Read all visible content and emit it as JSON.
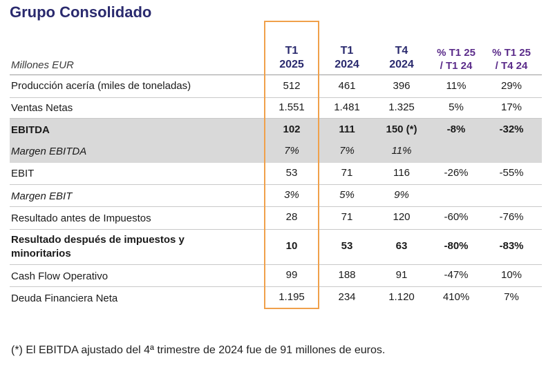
{
  "title": "Grupo Consolidado",
  "units_label": "Millones EUR",
  "columns": [
    {
      "l1": "T1",
      "l2": "2025"
    },
    {
      "l1": "T1",
      "l2": "2024"
    },
    {
      "l1": "T4",
      "l2": "2024"
    },
    {
      "l1": "% T1 25",
      "l2": "/ T1 24"
    },
    {
      "l1": "% T1 25",
      "l2": "/ T4 24"
    }
  ],
  "rows": [
    {
      "label": "Producción acería (miles de toneladas)",
      "values": [
        "512",
        "461",
        "396",
        "11%",
        "29%"
      ]
    },
    {
      "label": "Ventas Netas",
      "values": [
        "1.551",
        "1.481",
        "1.325",
        "5%",
        "17%"
      ]
    },
    {
      "label": "EBITDA",
      "values": [
        "102",
        "111",
        "150 (*)",
        "-8%",
        "-32%"
      ]
    },
    {
      "label": "Margen EBITDA",
      "values": [
        "7%",
        "7%",
        "11%",
        "",
        ""
      ]
    },
    {
      "label": "EBIT",
      "values": [
        "53",
        "71",
        "116",
        "-26%",
        "-55%"
      ]
    },
    {
      "label": "Margen EBIT",
      "values": [
        "3%",
        "5%",
        "9%",
        "",
        ""
      ]
    },
    {
      "label": "Resultado antes de Impuestos",
      "values": [
        "28",
        "71",
        "120",
        "-60%",
        "-76%"
      ]
    },
    {
      "label_line1": "Resultado después de impuestos y",
      "label_line2": "minoritarios",
      "values": [
        "10",
        "53",
        "63",
        "-80%",
        "-83%"
      ]
    },
    {
      "label": "Cash Flow Operativo",
      "values": [
        "99",
        "188",
        "91",
        "-47%",
        "10%"
      ]
    },
    {
      "label": "Deuda Financiera Neta",
      "values": [
        "1.195",
        "234",
        "1.120",
        "410%",
        "7%"
      ]
    }
  ],
  "footnote": "(*) El EBITDA ajustado del 4ª trimestre de 2024 fue de 91 millones de euros."
}
